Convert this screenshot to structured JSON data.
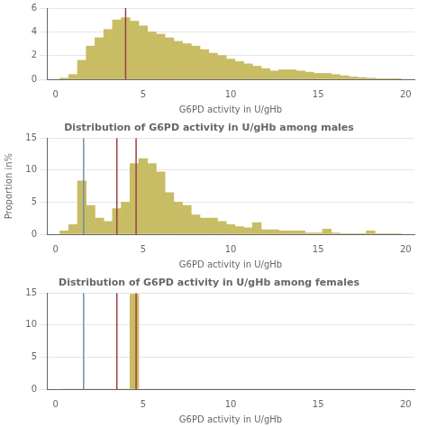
{
  "chart_data": [
    {
      "type": "histogram",
      "xlabel": "G6PD activity in U/gHb",
      "bins": [
        0.25,
        0.75,
        1.25,
        1.75,
        2.25,
        2.75,
        3.25,
        3.75,
        4.25,
        4.75,
        5.25,
        5.75,
        6.25,
        6.75,
        7.25,
        7.75,
        8.25,
        8.75,
        9.25,
        9.75,
        10.25,
        10.75,
        11.25,
        11.75,
        12.25,
        12.75,
        13.25,
        13.75,
        14.25,
        14.75,
        15.25,
        15.75,
        16.25,
        16.75,
        17.25,
        17.75,
        18.25,
        18.75,
        19.25,
        19.75
      ],
      "values": [
        0.1,
        0.4,
        1.6,
        2.8,
        3.5,
        4.2,
        5.0,
        5.2,
        4.9,
        4.5,
        4.0,
        3.8,
        3.5,
        3.2,
        3.0,
        2.8,
        2.5,
        2.2,
        2.0,
        1.7,
        1.5,
        1.3,
        1.1,
        0.9,
        0.7,
        0.8,
        0.8,
        0.7,
        0.6,
        0.5,
        0.5,
        0.4,
        0.3,
        0.2,
        0.15,
        0.1,
        0.05,
        0.05,
        0.05
      ],
      "color": "#c8bc64",
      "xlim": [
        -0.5,
        20.5
      ],
      "xticks": [
        0,
        5,
        10,
        15,
        20
      ],
      "ylim": [
        0,
        6
      ],
      "yticks": [
        0,
        2,
        4,
        6
      ],
      "grid": "y",
      "vlines": [
        {
          "x": 4.0,
          "color": "#9a4040"
        }
      ]
    },
    {
      "type": "histogram",
      "title": "Distribution of G6PD activity in U/gHb among males",
      "xlabel": "G6PD activity in U/gHb",
      "ylabel": "Proportion in%",
      "bins": [
        0.25,
        0.75,
        1.25,
        1.75,
        2.25,
        2.75,
        3.25,
        3.75,
        4.25,
        4.75,
        5.25,
        5.75,
        6.25,
        6.75,
        7.25,
        7.75,
        8.25,
        8.75,
        9.25,
        9.75,
        10.25,
        10.75,
        11.25,
        11.75,
        12.25,
        12.75,
        13.25,
        13.75,
        14.25,
        14.75,
        15.25,
        15.75,
        16.25,
        16.75,
        17.25,
        17.75,
        18.25,
        18.75,
        19.25,
        19.75
      ],
      "values": [
        0.5,
        1.5,
        8.3,
        4.5,
        2.5,
        2.0,
        4.0,
        5.0,
        11.0,
        11.8,
        11.0,
        9.7,
        6.5,
        5.0,
        4.5,
        3.0,
        2.5,
        2.5,
        2.0,
        1.5,
        1.2,
        1.0,
        1.8,
        0.7,
        0.7,
        0.5,
        0.5,
        0.5,
        0.2,
        0.2,
        0.8,
        0.2,
        0.1,
        0.1,
        0.1,
        0.5,
        0.1,
        0.1,
        0.1
      ],
      "color": "#c8bc64",
      "xlim": [
        -0.5,
        20.5
      ],
      "xticks": [
        0,
        5,
        10,
        15,
        20
      ],
      "ylim": [
        0,
        15
      ],
      "yticks": [
        0,
        5,
        10,
        15
      ],
      "grid": "y",
      "vlines": [
        {
          "x": 1.6,
          "color": "#7090b0"
        },
        {
          "x": 3.5,
          "color": "#9a4040"
        },
        {
          "x": 4.6,
          "color": "#9a4040"
        }
      ]
    },
    {
      "type": "histogram",
      "title": "Distribution of G6PD activity in U/gHb among females",
      "xlabel": "G6PD activity in U/gHb",
      "bins": [
        0.25,
        0.75,
        1.25,
        1.75,
        2.25,
        2.75,
        3.25,
        3.75,
        4.25,
        4.75,
        5.25,
        5.75,
        6.25,
        6.75,
        7.25,
        7.75,
        8.25,
        8.75,
        9.25,
        9.75,
        10.25,
        10.75,
        11.25,
        11.75,
        12.25,
        12.75,
        13.25,
        13.75,
        14.25,
        14.75,
        15.25,
        15.75,
        16.25,
        16.75,
        17.25,
        17.75,
        18.25,
        18.75,
        19.25,
        19.75
      ],
      "values": [
        0.0,
        0.0,
        0.0,
        0.0,
        0.0,
        0.0,
        0.0,
        0.0,
        14.8,
        0.0,
        0.0,
        0.0,
        0.0,
        0.0,
        0.0,
        0.0,
        0.0,
        0.0,
        0.0,
        0.0,
        0.0,
        0.0,
        0.0,
        0.0,
        0.0,
        0.0,
        0.0,
        0.0,
        0.0,
        0.0,
        0.0,
        0.0,
        0.0,
        0.0,
        0.0,
        0.0,
        0.0,
        0.0,
        0.0
      ],
      "color": "#c8bc64",
      "xlim": [
        -0.5,
        20.5
      ],
      "xticks": [
        0,
        5,
        10,
        15,
        20
      ],
      "ylim": [
        0,
        15
      ],
      "yticks": [
        0,
        5,
        10,
        15
      ],
      "grid": "y",
      "vlines": [
        {
          "x": 1.6,
          "color": "#7090b0"
        },
        {
          "x": 3.5,
          "color": "#9a4040"
        },
        {
          "x": 4.6,
          "color": "#9a4040"
        }
      ]
    }
  ]
}
